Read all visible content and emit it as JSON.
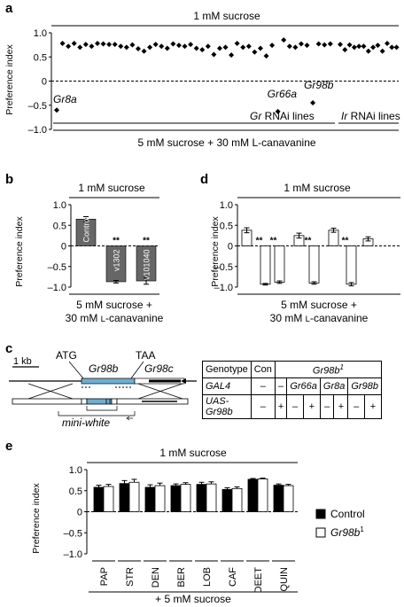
{
  "panel_letters": {
    "a": "a",
    "b": "b",
    "c": "c",
    "d": "d",
    "e": "e"
  },
  "chart_data": [
    {
      "panel": "a",
      "type": "scatter",
      "top_label": "1 mM sucrose",
      "bottom_label": "5 mM sucrose + 30 mM L-canavanine",
      "ylabel": "Preference index",
      "ylim": [
        -1.0,
        1.0
      ],
      "yticks": [
        "1.0",
        "0.5",
        "0",
        "-0.5",
        "-1.0"
      ],
      "groups": [
        {
          "label": "Gr RNAi lines",
          "label_italic": "Gr",
          "label_rest": " RNAi lines"
        },
        {
          "label": "Ir RNAi lines",
          "label_italic": "Ir",
          "label_rest": " RNAi lines"
        }
      ],
      "gr_values": [
        -0.6,
        0.78,
        0.72,
        0.78,
        0.7,
        0.76,
        0.72,
        0.78,
        0.77,
        0.76,
        0.76,
        0.72,
        0.7,
        0.75,
        0.67,
        0.62,
        0.7,
        0.76,
        0.72,
        0.68,
        0.77,
        0.74,
        0.72,
        0.76,
        0.68,
        0.65,
        0.72,
        0.55,
        0.68,
        0.7,
        0.54,
        0.78,
        0.7,
        0.72,
        0.6,
        0.68,
        0.52,
        0.74,
        -0.63,
        0.85,
        0.72,
        0.7,
        0.77,
        0.74,
        -0.45,
        0.77,
        0.75,
        0.77
      ],
      "ir_values": [
        0.76,
        0.65,
        0.75,
        0.7,
        0.72,
        0.72,
        0.62,
        0.7,
        0.74,
        0.62,
        0.78,
        0.7,
        0.7
      ],
      "annotations": [
        {
          "text": "Gr8a",
          "index": 0
        },
        {
          "text": "Gr66a",
          "index": 38
        },
        {
          "text": "Gr98b",
          "index": 44
        }
      ]
    },
    {
      "panel": "b",
      "type": "bar",
      "top_label": "1 mM sucrose",
      "bottom_label_1": "5 mM sucrose +",
      "bottom_label_2": "30 mM L-canavanine",
      "ylabel": "Preference index",
      "ylim": [
        -1.0,
        1.0
      ],
      "yticks": [
        "1.0",
        "0.5",
        "0",
        "-0.5",
        "-1.0"
      ],
      "categories": [
        "Control",
        "v1302",
        "v101040"
      ],
      "values": [
        0.65,
        -0.87,
        -0.85
      ],
      "errors": [
        0.06,
        0.03,
        0.08
      ],
      "significance": [
        "",
        "**",
        "**"
      ],
      "color": "#666666"
    },
    {
      "panel": "d",
      "type": "bar",
      "top_label": "1 mM sucrose",
      "bottom_label_1": "5 mM sucrose +",
      "bottom_label_2": "30 mM L-canavanine",
      "ylabel": "Preference index",
      "ylim": [
        -1.0,
        1.0
      ],
      "yticks": [
        "1.0",
        "0.5",
        "0",
        "-0.5",
        "-1.0"
      ],
      "values": [
        0.38,
        -0.93,
        -0.88,
        0.25,
        -0.9,
        0.38,
        -0.93,
        0.17
      ],
      "errors": [
        0.06,
        0.02,
        0.03,
        0.06,
        0.03,
        0.05,
        0.04,
        0.05
      ],
      "significance": [
        "",
        "**",
        "**",
        "",
        "**",
        "",
        "**",
        ""
      ],
      "color": "#ffffff"
    },
    {
      "panel": "e",
      "type": "bar",
      "top_label": "1 mM sucrose",
      "bottom_label": "+ 5 mM sucrose",
      "ylabel": "Preference index",
      "ylim": [
        -1.0,
        1.0
      ],
      "yticks": [
        "1.0",
        "0.5",
        "0",
        "-0.5",
        "-1.0"
      ],
      "categories": [
        "PAP",
        "STR",
        "DEN",
        "BER",
        "LOB",
        "CAF",
        "DEET",
        "QUIN"
      ],
      "series": [
        {
          "name": "Control",
          "values": [
            0.58,
            0.67,
            0.58,
            0.62,
            0.65,
            0.53,
            0.77,
            0.63
          ],
          "errors": [
            0.05,
            0.07,
            0.06,
            0.04,
            0.05,
            0.04,
            0.02,
            0.03
          ],
          "color": "#000000"
        },
        {
          "name": "Gr98b1",
          "name_base": "Gr98b",
          "name_sup": "1",
          "values": [
            0.6,
            0.7,
            0.62,
            0.65,
            0.66,
            0.55,
            0.78,
            0.62
          ],
          "errors": [
            0.05,
            0.07,
            0.06,
            0.04,
            0.05,
            0.04,
            0.02,
            0.03
          ],
          "color": "#ffffff"
        }
      ]
    }
  ],
  "diagram_c": {
    "scale": "1 kb",
    "atg": "ATG",
    "taa": "TAA",
    "gene1": "Gr98b",
    "gene2": "Gr98c",
    "marker": "mini-white"
  },
  "genotype_table": {
    "header_label": "Genotype",
    "con": "Con",
    "mutant": "Gr98b",
    "mutant_sup": "1",
    "gal4_label": "GAL4",
    "uas_label_1": "UAS-",
    "uas_label_2": "Gr98b",
    "gal4_row": [
      "–",
      "–",
      "Gr66a",
      "Gr8a",
      "Gr98b"
    ],
    "uas_row": [
      "–",
      "+",
      "–",
      "+",
      "–",
      "+",
      "–",
      "+"
    ]
  }
}
